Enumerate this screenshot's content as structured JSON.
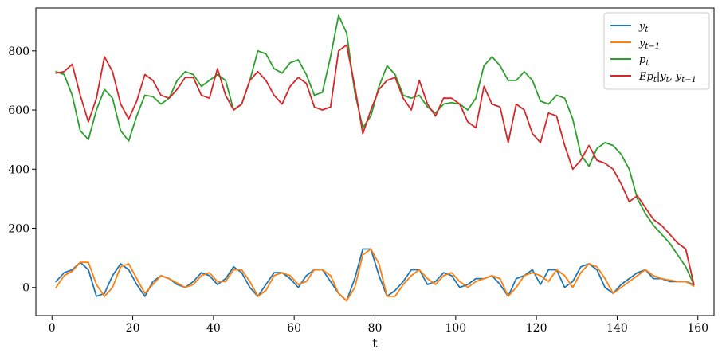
{
  "chart_data": {
    "type": "line",
    "title": "",
    "xlabel": "t",
    "ylabel": "",
    "xlim": [
      -4,
      164
    ],
    "ylim": [
      -95,
      945
    ],
    "xticks": [
      0,
      20,
      40,
      60,
      80,
      100,
      120,
      140,
      160
    ],
    "yticks": [
      0,
      200,
      400,
      600,
      800
    ],
    "grid": false,
    "legend_position": "top-right",
    "series": [
      {
        "name": "y_t",
        "label_main": "y",
        "label_sub": "t",
        "color": "#1f77b4",
        "x": [
          1,
          3,
          5,
          7,
          9,
          11,
          13,
          15,
          17,
          19,
          21,
          23,
          25,
          27,
          29,
          31,
          33,
          35,
          37,
          39,
          41,
          43,
          45,
          47,
          49,
          51,
          53,
          55,
          57,
          59,
          61,
          63,
          65,
          67,
          69,
          71,
          73,
          75,
          77,
          79,
          81,
          83,
          85,
          87,
          89,
          91,
          93,
          95,
          97,
          99,
          101,
          103,
          105,
          107,
          109,
          111,
          113,
          115,
          117,
          119,
          121,
          123,
          125,
          127,
          129,
          131,
          133,
          135,
          137,
          139,
          141,
          143,
          145,
          147,
          149,
          151,
          153,
          155,
          157,
          159
        ],
        "y": [
          20,
          50,
          60,
          85,
          60,
          -30,
          -20,
          40,
          80,
          60,
          10,
          -30,
          20,
          40,
          30,
          10,
          0,
          20,
          50,
          40,
          10,
          30,
          70,
          50,
          0,
          -30,
          10,
          50,
          50,
          30,
          0,
          40,
          60,
          60,
          20,
          -20,
          -45,
          30,
          130,
          130,
          40,
          -30,
          -10,
          20,
          60,
          60,
          10,
          20,
          50,
          40,
          0,
          10,
          30,
          30,
          40,
          10,
          -30,
          30,
          40,
          60,
          10,
          60,
          60,
          0,
          20,
          70,
          80,
          60,
          0,
          -20,
          10,
          30,
          50,
          60,
          30,
          30,
          20,
          20,
          20,
          10
        ]
      },
      {
        "name": "y_{t-1}",
        "label_main": "y",
        "label_sub": "t−1",
        "color": "#ff7f0e",
        "x": [
          1,
          3,
          5,
          7,
          9,
          11,
          13,
          15,
          17,
          19,
          21,
          23,
          25,
          27,
          29,
          31,
          33,
          35,
          37,
          39,
          41,
          43,
          45,
          47,
          49,
          51,
          53,
          55,
          57,
          59,
          61,
          63,
          65,
          67,
          69,
          71,
          73,
          75,
          77,
          79,
          81,
          83,
          85,
          87,
          89,
          91,
          93,
          95,
          97,
          99,
          101,
          103,
          105,
          107,
          109,
          111,
          113,
          115,
          117,
          119,
          121,
          123,
          125,
          127,
          129,
          131,
          133,
          135,
          137,
          139,
          141,
          143,
          145,
          147,
          149,
          151,
          153,
          155,
          157,
          159
        ],
        "y": [
          0,
          40,
          55,
          85,
          85,
          10,
          -30,
          0,
          70,
          80,
          30,
          -20,
          10,
          40,
          30,
          15,
          0,
          10,
          40,
          50,
          20,
          20,
          60,
          60,
          20,
          -30,
          -10,
          40,
          50,
          40,
          10,
          20,
          60,
          60,
          40,
          -20,
          -45,
          0,
          110,
          130,
          80,
          -30,
          -30,
          10,
          40,
          60,
          30,
          10,
          40,
          50,
          20,
          0,
          20,
          30,
          40,
          30,
          -30,
          0,
          40,
          50,
          40,
          20,
          60,
          40,
          0,
          50,
          80,
          70,
          30,
          -20,
          0,
          20,
          40,
          60,
          40,
          30,
          25,
          20,
          20,
          5
        ]
      },
      {
        "name": "p_t",
        "label_main": "p",
        "label_sub": "t",
        "color": "#2ca02c",
        "x": [
          1,
          3,
          5,
          7,
          9,
          11,
          13,
          15,
          17,
          19,
          21,
          23,
          25,
          27,
          29,
          31,
          33,
          35,
          37,
          39,
          41,
          43,
          45,
          47,
          49,
          51,
          53,
          55,
          57,
          59,
          61,
          63,
          65,
          67,
          69,
          71,
          73,
          75,
          77,
          79,
          81,
          83,
          85,
          87,
          89,
          91,
          93,
          95,
          97,
          99,
          101,
          103,
          105,
          107,
          109,
          111,
          113,
          115,
          117,
          119,
          121,
          123,
          125,
          127,
          129,
          131,
          133,
          135,
          137,
          139,
          141,
          143,
          145,
          147,
          149,
          151,
          153,
          155,
          157,
          159
        ],
        "y": [
          730,
          720,
          650,
          530,
          500,
          600,
          670,
          640,
          530,
          495,
          580,
          650,
          645,
          620,
          640,
          700,
          730,
          720,
          680,
          700,
          720,
          700,
          600,
          620,
          700,
          800,
          790,
          740,
          725,
          760,
          770,
          720,
          650,
          660,
          780,
          920,
          860,
          660,
          540,
          580,
          680,
          750,
          720,
          650,
          640,
          650,
          610,
          590,
          620,
          625,
          620,
          600,
          640,
          750,
          780,
          750,
          700,
          700,
          730,
          700,
          630,
          620,
          650,
          640,
          570,
          450,
          410,
          470,
          490,
          480,
          450,
          400,
          300,
          250,
          210,
          180,
          150,
          110,
          70,
          10
        ]
      },
      {
        "name": "Ep_t | y_t, y_{t-1}",
        "label_main": "Ep",
        "label_sub": "t",
        "label_rest": "|y",
        "label_sub2": "t",
        "label_rest2": ", y",
        "label_sub3": "t−1",
        "color": "#d62728",
        "x": [
          1,
          3,
          5,
          7,
          9,
          11,
          13,
          15,
          17,
          19,
          21,
          23,
          25,
          27,
          29,
          31,
          33,
          35,
          37,
          39,
          41,
          43,
          45,
          47,
          49,
          51,
          53,
          55,
          57,
          59,
          61,
          63,
          65,
          67,
          69,
          71,
          73,
          75,
          77,
          79,
          81,
          83,
          85,
          87,
          89,
          91,
          93,
          95,
          97,
          99,
          101,
          103,
          105,
          107,
          109,
          111,
          113,
          115,
          117,
          119,
          121,
          123,
          125,
          127,
          129,
          131,
          133,
          135,
          137,
          139,
          141,
          143,
          145,
          147,
          149,
          151,
          153,
          155,
          157,
          159
        ],
        "y": [
          725,
          730,
          755,
          650,
          560,
          640,
          780,
          730,
          620,
          570,
          630,
          720,
          700,
          650,
          640,
          670,
          710,
          710,
          650,
          640,
          740,
          650,
          600,
          620,
          700,
          730,
          700,
          650,
          620,
          680,
          710,
          690,
          610,
          600,
          610,
          800,
          820,
          680,
          520,
          600,
          670,
          700,
          710,
          640,
          600,
          700,
          620,
          580,
          640,
          640,
          620,
          560,
          540,
          680,
          620,
          610,
          490,
          620,
          600,
          520,
          490,
          590,
          580,
          480,
          400,
          430,
          480,
          430,
          420,
          400,
          350,
          290,
          310,
          270,
          230,
          210,
          180,
          150,
          130,
          10
        ]
      }
    ]
  }
}
